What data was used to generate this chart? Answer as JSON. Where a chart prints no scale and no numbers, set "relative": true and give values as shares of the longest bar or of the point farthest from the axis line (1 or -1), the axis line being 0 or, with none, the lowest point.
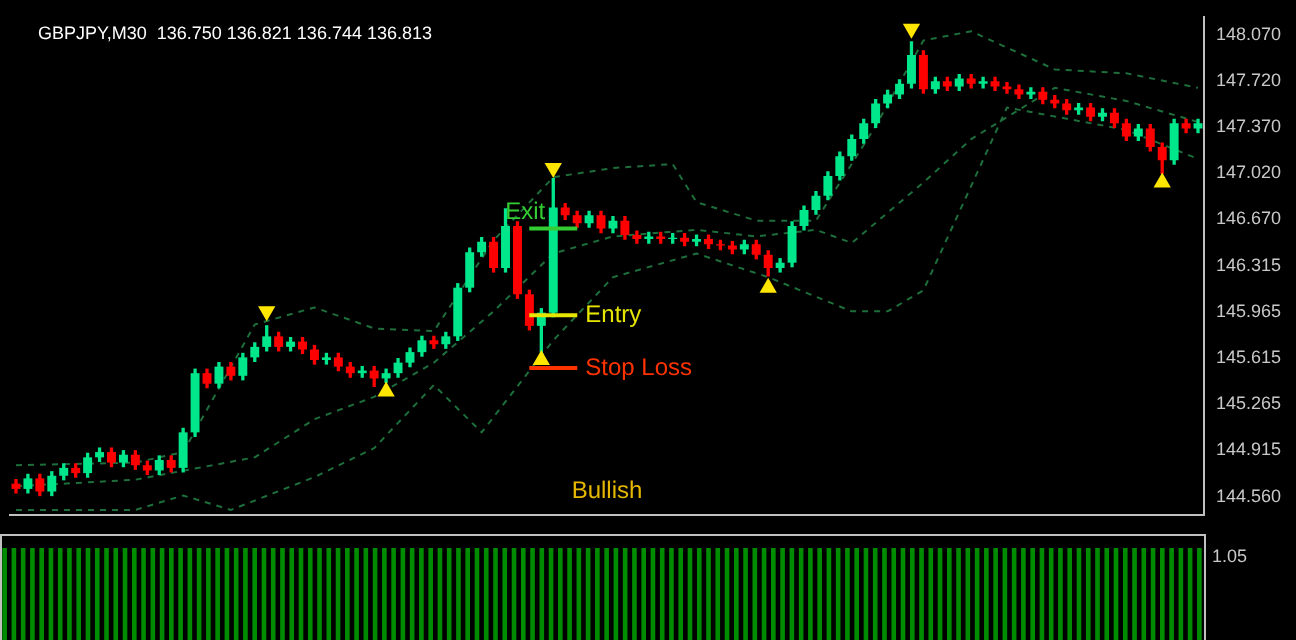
{
  "chart_data": [
    {
      "type": "candlestick",
      "title": "GBPJPY,M30  136.750 136.821 136.744 136.813",
      "categories": [
        null,
        null,
        null,
        null,
        null,
        null,
        null,
        null,
        null,
        null,
        null,
        null,
        null,
        null,
        null,
        null,
        null,
        null,
        null,
        null,
        null,
        null,
        null,
        null,
        null,
        null,
        null,
        null,
        null,
        null,
        null,
        null,
        null,
        null,
        null,
        null,
        null,
        null,
        null,
        null,
        null,
        null,
        null,
        null,
        null,
        null,
        null,
        null,
        null,
        null,
        null,
        null,
        null,
        null,
        null,
        null,
        null,
        null,
        null,
        null,
        null,
        null,
        null,
        null,
        null,
        null,
        null,
        null,
        null,
        null,
        null,
        null,
        null,
        null,
        null,
        null,
        null,
        null,
        null,
        null,
        null,
        null,
        null,
        null,
        null,
        null,
        null,
        null,
        null,
        null,
        null,
        null,
        null,
        null,
        null,
        null,
        null,
        null,
        null,
        null
      ],
      "ohlc": [
        [
          144.66,
          144.69,
          144.59,
          144.62
        ],
        [
          144.62,
          144.73,
          144.59,
          144.7
        ],
        [
          144.7,
          144.73,
          144.57,
          144.6
        ],
        [
          144.6,
          144.75,
          144.57,
          144.72
        ],
        [
          144.72,
          144.81,
          144.69,
          144.78
        ],
        [
          144.78,
          144.81,
          144.71,
          144.74
        ],
        [
          144.74,
          144.89,
          144.71,
          144.86
        ],
        [
          144.86,
          144.93,
          144.83,
          144.9
        ],
        [
          144.9,
          144.93,
          144.79,
          144.82
        ],
        [
          144.82,
          144.91,
          144.79,
          144.88
        ],
        [
          144.88,
          144.91,
          144.77,
          144.8
        ],
        [
          144.8,
          144.83,
          144.73,
          144.76
        ],
        [
          144.76,
          144.87,
          144.73,
          144.84
        ],
        [
          144.84,
          144.87,
          144.75,
          144.78
        ],
        [
          144.78,
          145.08,
          144.75,
          145.05
        ],
        [
          145.05,
          145.53,
          145.02,
          145.5
        ],
        [
          145.5,
          145.53,
          145.39,
          145.42
        ],
        [
          145.42,
          145.58,
          145.39,
          145.55
        ],
        [
          145.55,
          145.58,
          145.45,
          145.48
        ],
        [
          145.48,
          145.65,
          145.45,
          145.62
        ],
        [
          145.62,
          145.73,
          145.59,
          145.7
        ],
        [
          145.7,
          145.86,
          145.67,
          145.78
        ],
        [
          145.78,
          145.81,
          145.67,
          145.7
        ],
        [
          145.7,
          145.77,
          145.67,
          145.74
        ],
        [
          145.74,
          145.77,
          145.65,
          145.68
        ],
        [
          145.68,
          145.71,
          145.57,
          145.6
        ],
        [
          145.6,
          145.65,
          145.57,
          145.62
        ],
        [
          145.62,
          145.65,
          145.52,
          145.55
        ],
        [
          145.55,
          145.58,
          145.47,
          145.5
        ],
        [
          145.5,
          145.55,
          145.47,
          145.52
        ],
        [
          145.52,
          145.55,
          145.4,
          145.46
        ],
        [
          145.46,
          145.53,
          145.43,
          145.5
        ],
        [
          145.5,
          145.61,
          145.47,
          145.58
        ],
        [
          145.58,
          145.69,
          145.55,
          145.66
        ],
        [
          145.66,
          145.78,
          145.63,
          145.75
        ],
        [
          145.75,
          145.78,
          145.69,
          145.72
        ],
        [
          145.72,
          145.81,
          145.69,
          145.78
        ],
        [
          145.78,
          146.18,
          145.75,
          146.15
        ],
        [
          146.15,
          146.45,
          146.12,
          146.42
        ],
        [
          146.42,
          146.53,
          146.39,
          146.5
        ],
        [
          146.5,
          146.53,
          146.27,
          146.3
        ],
        [
          146.3,
          146.75,
          146.27,
          146.62
        ],
        [
          146.62,
          146.65,
          146.07,
          146.1
        ],
        [
          146.1,
          146.13,
          145.83,
          145.86
        ],
        [
          145.86,
          145.99,
          145.66,
          145.96
        ],
        [
          145.96,
          146.98,
          145.93,
          146.76
        ],
        [
          146.76,
          146.79,
          146.67,
          146.7
        ],
        [
          146.7,
          146.73,
          146.61,
          146.64
        ],
        [
          146.64,
          146.73,
          146.61,
          146.7
        ],
        [
          146.7,
          146.73,
          146.57,
          146.6
        ],
        [
          146.6,
          146.69,
          146.57,
          146.66
        ],
        [
          146.66,
          146.69,
          146.52,
          146.55
        ],
        [
          146.55,
          146.58,
          146.49,
          146.52
        ],
        [
          146.52,
          146.57,
          146.49,
          146.54
        ],
        [
          146.54,
          146.57,
          146.49,
          146.52
        ],
        [
          146.52,
          146.56,
          146.49,
          146.53
        ],
        [
          146.53,
          146.56,
          146.47,
          146.5
        ],
        [
          146.5,
          146.55,
          146.47,
          146.52
        ],
        [
          146.52,
          146.55,
          146.45,
          146.48
        ],
        [
          146.48,
          146.51,
          146.44,
          146.47
        ],
        [
          146.47,
          146.5,
          146.41,
          146.44
        ],
        [
          146.44,
          146.51,
          146.41,
          146.48
        ],
        [
          146.48,
          146.51,
          146.37,
          146.4
        ],
        [
          146.4,
          146.43,
          146.24,
          146.3
        ],
        [
          146.3,
          146.37,
          146.27,
          146.34
        ],
        [
          146.34,
          146.65,
          146.31,
          146.62
        ],
        [
          146.62,
          146.77,
          146.59,
          146.74
        ],
        [
          146.74,
          146.88,
          146.71,
          146.85
        ],
        [
          146.85,
          147.03,
          146.82,
          147.0
        ],
        [
          147.0,
          147.18,
          146.97,
          147.15
        ],
        [
          147.15,
          147.31,
          147.12,
          147.28
        ],
        [
          147.28,
          147.43,
          147.25,
          147.4
        ],
        [
          147.4,
          147.58,
          147.37,
          147.55
        ],
        [
          147.55,
          147.65,
          147.52,
          147.62
        ],
        [
          147.62,
          147.73,
          147.59,
          147.7
        ],
        [
          147.7,
          148.02,
          147.67,
          147.92
        ],
        [
          147.92,
          147.95,
          147.63,
          147.66
        ],
        [
          147.66,
          147.75,
          147.63,
          147.72
        ],
        [
          147.72,
          147.75,
          147.65,
          147.68
        ],
        [
          147.68,
          147.77,
          147.65,
          147.74
        ],
        [
          147.74,
          147.77,
          147.67,
          147.7
        ],
        [
          147.7,
          147.75,
          147.67,
          147.72
        ],
        [
          147.72,
          147.75,
          147.65,
          147.68
        ],
        [
          147.68,
          147.71,
          147.63,
          147.66
        ],
        [
          147.66,
          147.69,
          147.59,
          147.62
        ],
        [
          147.62,
          147.67,
          147.59,
          147.64
        ],
        [
          147.64,
          147.67,
          147.55,
          147.58
        ],
        [
          147.58,
          147.61,
          147.52,
          147.55
        ],
        [
          147.55,
          147.58,
          147.47,
          147.5
        ],
        [
          147.5,
          147.55,
          147.47,
          147.52
        ],
        [
          147.52,
          147.55,
          147.42,
          147.45
        ],
        [
          147.45,
          147.51,
          147.42,
          147.48
        ],
        [
          147.48,
          147.51,
          147.37,
          147.4
        ],
        [
          147.4,
          147.43,
          147.27,
          147.3
        ],
        [
          147.3,
          147.39,
          147.27,
          147.36
        ],
        [
          147.36,
          147.39,
          147.19,
          147.22
        ],
        [
          147.22,
          147.25,
          147.02,
          147.12
        ],
        [
          147.12,
          147.43,
          147.09,
          147.4
        ],
        [
          147.4,
          147.43,
          147.33,
          147.36
        ],
        [
          147.36,
          147.43,
          147.33,
          147.4
        ]
      ],
      "colors": [
        "#ff0000",
        "#00e68a",
        "#ff0000",
        "#00e68a",
        "#00e68a",
        "#ff0000",
        "#00e68a",
        "#00e68a",
        "#ff0000",
        "#00e68a",
        "#ff0000",
        "#ff0000",
        "#00e68a",
        "#ff0000",
        "#00e68a",
        "#00e68a",
        "#ff0000",
        "#00e68a",
        "#ff0000",
        "#00e68a",
        "#00e68a",
        "#00e68a",
        "#ff0000",
        "#00e68a",
        "#ff0000",
        "#ff0000",
        "#00e68a",
        "#ff0000",
        "#ff0000",
        "#00e68a",
        "#ff0000",
        "#00e68a",
        "#00e68a",
        "#00e68a",
        "#00e68a",
        "#ff0000",
        "#00e68a",
        "#00e68a",
        "#00e68a",
        "#00e68a",
        "#ff0000",
        "#00e68a",
        "#ff0000",
        "#ff0000",
        "#00e68a",
        "#00e68a",
        "#ff0000",
        "#ff0000",
        "#00e68a",
        "#ff0000",
        "#00e68a",
        "#ff0000",
        "#ff0000",
        "#00e68a",
        "#ff0000",
        "#00e68a",
        "#ff0000",
        "#00e68a",
        "#ff0000",
        "#ff0000",
        "#ff0000",
        "#00e68a",
        "#ff0000",
        "#ff0000",
        "#00e68a",
        "#00e68a",
        "#00e68a",
        "#00e68a",
        "#00e68a",
        "#00e68a",
        "#00e68a",
        "#00e68a",
        "#00e68a",
        "#00e68a",
        "#00e68a",
        "#00e68a",
        "#ff0000",
        "#00e68a",
        "#ff0000",
        "#00e68a",
        "#ff0000",
        "#00e68a",
        "#ff0000",
        "#ff0000",
        "#ff0000",
        "#00e68a",
        "#ff0000",
        "#ff0000",
        "#ff0000",
        "#00e68a",
        "#ff0000",
        "#00e68a",
        "#ff0000",
        "#ff0000",
        "#00e68a",
        "#ff0000",
        "#ff0000",
        "#00e68a",
        "#ff0000",
        "#00e68a"
      ],
      "series": [
        {
          "type": "line",
          "color": "#1e6e3c",
          "line_style": "dashed",
          "marker": "none",
          "values": [
            144.8,
            null,
            null,
            null,
            null,
            null,
            null,
            null,
            null,
            null,
            144.82,
            null,
            null,
            null,
            144.9,
            null,
            null,
            null,
            null,
            null,
            145.87,
            null,
            null,
            null,
            null,
            146.0,
            null,
            null,
            null,
            null,
            145.84,
            null,
            null,
            null,
            null,
            145.82,
            null,
            null,
            null,
            null,
            146.51,
            null,
            null,
            null,
            null,
            146.99,
            null,
            null,
            null,
            null,
            147.06,
            null,
            null,
            null,
            null,
            147.09,
            null,
            146.8,
            null,
            null,
            null,
            null,
            146.66,
            null,
            null,
            null,
            null,
            146.66,
            null,
            null,
            null,
            null,
            147.38,
            null,
            null,
            null,
            148.03,
            null,
            null,
            null,
            148.1,
            null,
            null,
            null,
            null,
            null,
            null,
            147.81,
            null,
            null,
            null,
            null,
            null,
            147.78,
            null,
            null,
            null,
            null,
            null,
            147.67
          ]
        },
        {
          "type": "line",
          "color": "#1e6e3c",
          "line_style": "dashed",
          "marker": "none",
          "values": [
            144.64,
            null,
            null,
            null,
            null,
            null,
            null,
            null,
            null,
            null,
            144.69,
            null,
            null,
            null,
            null,
            null,
            null,
            null,
            null,
            null,
            144.86,
            null,
            null,
            null,
            null,
            145.15,
            null,
            null,
            null,
            null,
            145.32,
            null,
            null,
            null,
            null,
            145.58,
            null,
            null,
            null,
            null,
            145.97,
            null,
            null,
            null,
            null,
            146.41,
            null,
            null,
            null,
            null,
            146.54,
            null,
            null,
            null,
            null,
            null,
            null,
            146.59,
            null,
            null,
            null,
            null,
            146.54,
            null,
            null,
            null,
            null,
            146.59,
            null,
            null,
            146.49,
            null,
            null,
            null,
            null,
            null,
            146.95,
            null,
            null,
            null,
            147.28,
            null,
            null,
            null,
            null,
            null,
            null,
            147.67,
            null,
            null,
            null,
            null,
            null,
            147.57,
            null,
            null,
            null,
            null,
            null,
            147.41
          ]
        },
        {
          "type": "line",
          "color": "#1e6e3c",
          "line_style": "dashed",
          "marker": "none",
          "values": [
            144.46,
            null,
            null,
            null,
            null,
            null,
            null,
            null,
            null,
            null,
            144.46,
            null,
            null,
            null,
            144.57,
            null,
            null,
            null,
            144.46,
            null,
            null,
            null,
            null,
            null,
            null,
            144.71,
            null,
            null,
            null,
            null,
            144.93,
            null,
            null,
            null,
            null,
            145.41,
            null,
            null,
            null,
            145.05,
            null,
            null,
            null,
            null,
            null,
            145.75,
            null,
            null,
            null,
            null,
            146.23,
            null,
            null,
            null,
            null,
            null,
            null,
            146.41,
            null,
            null,
            null,
            null,
            null,
            146.23,
            null,
            null,
            null,
            null,
            null,
            null,
            145.97,
            null,
            null,
            145.97,
            null,
            null,
            146.13,
            null,
            null,
            null,
            null,
            null,
            null,
            147.52,
            null,
            null,
            null,
            null,
            null,
            null,
            null,
            null,
            null,
            147.35,
            null,
            null,
            null,
            null,
            null,
            147.13
          ]
        },
        {
          "type": "scatter",
          "color": "#ffe600",
          "marker": "triangle",
          "values": [
            null,
            null,
            null,
            null,
            null,
            null,
            null,
            null,
            null,
            null,
            null,
            null,
            null,
            null,
            null,
            null,
            null,
            null,
            null,
            null,
            null,
            145.97,
            null,
            null,
            null,
            null,
            null,
            null,
            null,
            null,
            null,
            145.36,
            null,
            null,
            null,
            null,
            null,
            null,
            null,
            null,
            null,
            null,
            null,
            null,
            145.6,
            147.06,
            null,
            null,
            null,
            null,
            null,
            null,
            null,
            null,
            null,
            null,
            null,
            null,
            null,
            null,
            null,
            null,
            null,
            146.15,
            null,
            null,
            null,
            null,
            null,
            null,
            null,
            null,
            null,
            null,
            null,
            148.12,
            null,
            null,
            null,
            null,
            null,
            null,
            null,
            null,
            null,
            null,
            null,
            null,
            null,
            null,
            null,
            null,
            null,
            null,
            null,
            null,
            146.95,
            null,
            null,
            null
          ]
        }
      ],
      "ylim": [
        144.42,
        148.21
      ],
      "yticks": [
        {
          "value": 144.56,
          "label": "144.560"
        },
        {
          "value": 144.915,
          "label": "144.915"
        },
        {
          "value": 145.265,
          "label": "145.265"
        },
        {
          "value": 145.615,
          "label": "145.615"
        },
        {
          "value": 145.965,
          "label": "145.965"
        },
        {
          "value": 146.315,
          "label": "146.315"
        },
        {
          "value": 146.67,
          "label": "146.670"
        },
        {
          "value": 147.02,
          "label": "147.020"
        },
        {
          "value": 147.37,
          "label": "147.370"
        },
        {
          "value": 147.72,
          "label": "147.720"
        },
        {
          "value": 148.07,
          "label": "148.070"
        }
      ],
      "ref_lines": [
        {
          "axis": "y",
          "value": 146.6,
          "label": "Exit",
          "color": "#33cc33"
        },
        {
          "axis": "y",
          "value": 145.94,
          "label": "Entry",
          "color": "#e6e600"
        },
        {
          "axis": "y",
          "value": 145.54,
          "label": "Stop Loss",
          "color": "#ff3300"
        }
      ],
      "annotations": [
        "Bullish"
      ],
      "grid": false,
      "legend": false,
      "tick_labels": "y"
    },
    {
      "type": "bar",
      "categories": [
        null,
        null,
        null,
        null,
        null,
        null,
        null,
        null,
        null,
        null,
        null,
        null,
        null,
        null,
        null,
        null,
        null,
        null,
        null,
        null,
        null,
        null,
        null,
        null,
        null,
        null,
        null,
        null,
        null,
        null,
        null,
        null,
        null,
        null,
        null,
        null,
        null,
        null,
        null,
        null,
        null,
        null,
        null,
        null,
        null,
        null,
        null,
        null,
        null,
        null,
        null,
        null,
        null,
        null,
        null,
        null,
        null,
        null,
        null,
        null,
        null,
        null,
        null,
        null,
        null,
        null,
        null,
        null,
        null,
        null,
        null,
        null,
        null,
        null,
        null,
        null,
        null,
        null,
        null,
        null,
        null,
        null,
        null,
        null,
        null,
        null,
        null,
        null,
        null,
        null,
        null,
        null,
        null,
        null,
        null,
        null,
        null,
        null,
        null,
        null,
        null,
        null,
        null,
        null,
        null,
        null,
        null,
        null,
        null,
        null,
        null,
        null,
        null,
        null,
        null,
        null,
        null,
        null,
        null,
        null,
        null,
        null,
        null,
        null,
        null,
        null,
        null,
        null,
        null,
        null
      ],
      "values": [
        1,
        1,
        1,
        1,
        1,
        1,
        1,
        1,
        1,
        1,
        1,
        1,
        1,
        1,
        1,
        1,
        1,
        1,
        1,
        1,
        1,
        1,
        1,
        1,
        1,
        1,
        1,
        1,
        1,
        1,
        1,
        1,
        1,
        1,
        1,
        1,
        1,
        1,
        1,
        1,
        1,
        1,
        1,
        1,
        1,
        1,
        1,
        1,
        1,
        1,
        1,
        1,
        1,
        1,
        1,
        1,
        1,
        1,
        1,
        1,
        1,
        1,
        1,
        1,
        1,
        1,
        1,
        1,
        1,
        1,
        1,
        1,
        1,
        1,
        1,
        1,
        1,
        1,
        1,
        1,
        1,
        1,
        1,
        1,
        1,
        1,
        1,
        1,
        1,
        1,
        1,
        1,
        1,
        1,
        1,
        1,
        1,
        1,
        1,
        1,
        1,
        1,
        1,
        1,
        1,
        1,
        1,
        1,
        1,
        1,
        1,
        1,
        1,
        1,
        1,
        1,
        1,
        1,
        1,
        1,
        1,
        1,
        1,
        1,
        1,
        1,
        1,
        1,
        1,
        1
      ],
      "color": "#008c00",
      "relative": true,
      "annotations": [
        "1.05"
      ],
      "grid": false,
      "legend": false,
      "tick_labels": false
    }
  ]
}
